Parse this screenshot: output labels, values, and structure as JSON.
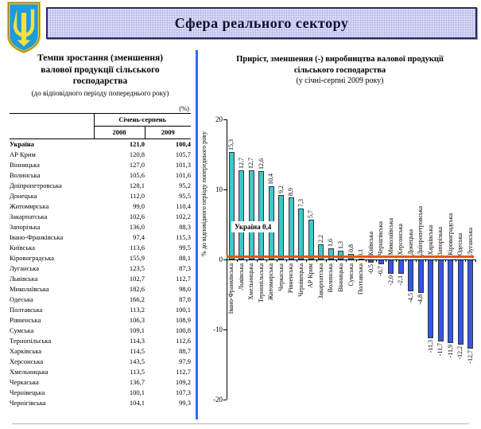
{
  "header": {
    "title": "Сфера реального сектору"
  },
  "left_panel": {
    "title": "Темпи зростання (зменшення) валової продукції сільського господарства",
    "subtitle": "(до відповідного періоду попереднього року)",
    "unit_label": "(%)",
    "table": {
      "period_header": "Січень-серпень",
      "col_headers": [
        "2008",
        "2009"
      ],
      "rows": [
        {
          "region": "Україна",
          "v2008": "121,0",
          "v2009": "100,4",
          "bold": true
        },
        {
          "region": "АР Крим",
          "v2008": "120,8",
          "v2009": "105,7"
        },
        {
          "region": "Вінницька",
          "v2008": "127,0",
          "v2009": "101,3"
        },
        {
          "region": "Волинська",
          "v2008": "105,6",
          "v2009": "101,6"
        },
        {
          "region": "Дніпропетровська",
          "v2008": "128,1",
          "v2009": "95,2"
        },
        {
          "region": "Донецька",
          "v2008": "112,0",
          "v2009": "95,5"
        },
        {
          "region": "Житомирська",
          "v2008": "99,0",
          "v2009": "110,4"
        },
        {
          "region": "Закарпатська",
          "v2008": "102,6",
          "v2009": "102,2"
        },
        {
          "region": "Запорізька",
          "v2008": "136,0",
          "v2009": "88,3"
        },
        {
          "region": "Івано-Франківська",
          "v2008": "97,4",
          "v2009": "115,3"
        },
        {
          "region": "Київська",
          "v2008": "113,6",
          "v2009": "99,5"
        },
        {
          "region": "Кіровоградська",
          "v2008": "155,9",
          "v2009": "88,1"
        },
        {
          "region": "Луганська",
          "v2008": "123,5",
          "v2009": "87,3"
        },
        {
          "region": "Львівська",
          "v2008": "102,7",
          "v2009": "112,7"
        },
        {
          "region": "Миколаївська",
          "v2008": "182,6",
          "v2009": "98,0"
        },
        {
          "region": "Одеська",
          "v2008": "166,2",
          "v2009": "87,8"
        },
        {
          "region": "Полтавська",
          "v2008": "113,2",
          "v2009": "100,1"
        },
        {
          "region": "Рівненська",
          "v2008": "106,3",
          "v2009": "108,9"
        },
        {
          "region": "Сумська",
          "v2008": "109,1",
          "v2009": "100,8"
        },
        {
          "region": "Тернопільська",
          "v2008": "114,3",
          "v2009": "112,6"
        },
        {
          "region": "Харківська",
          "v2008": "114,5",
          "v2009": "88,7"
        },
        {
          "region": "Херсонська",
          "v2008": "143,5",
          "v2009": "97,9"
        },
        {
          "region": "Хмельницька",
          "v2008": "113,5",
          "v2009": "112,7"
        },
        {
          "region": "Черкаська",
          "v2008": "136,7",
          "v2009": "109,2"
        },
        {
          "region": "Чернівецька",
          "v2008": "100,1",
          "v2009": "107,3"
        },
        {
          "region": "Чернігівська",
          "v2008": "104,1",
          "v2009": "99,3"
        }
      ]
    }
  },
  "chart": {
    "title_line1": "Приріст, зменшення (-) виробництва валової продукції",
    "title_line2": "сільського господарства",
    "title_line3": "(у січні-серпні 2009 року)"
  },
  "chart_data": {
    "type": "bar",
    "title": "Приріст, зменшення (-) виробництва валової продукції сільського господарства (у січні-серпні 2009 року)",
    "ylabel": "% до відповідного періоду попереднього року",
    "ylim": [
      -20,
      20
    ],
    "yticks": [
      20,
      10,
      0,
      -10,
      -20
    ],
    "grid": false,
    "legend": "none",
    "categories": [
      "Івано-Франківська",
      "Львівська",
      "Хмельницька",
      "Тернопільська",
      "Житомирська",
      "Черкаська",
      "Рівненська",
      "Чернівецька",
      "АР Крим",
      "Закарпатська",
      "Волинська",
      "Вінницька",
      "Сумська",
      "Полтавська",
      "Київська",
      "Чернігівська",
      "Миколаївська",
      "Херсонська",
      "Донецька",
      "Дніпропетровська",
      "Харківська",
      "Запорізька",
      "Кіровоградська",
      "Одеська",
      "Луганська"
    ],
    "values": [
      15.3,
      12.7,
      12.7,
      12.6,
      10.4,
      9.2,
      8.9,
      7.3,
      5.7,
      2.2,
      1.6,
      1.3,
      0.8,
      0.1,
      -0.5,
      -0.7,
      -2.0,
      -2.1,
      -4.5,
      -4.8,
      -11.3,
      -11.7,
      -11.9,
      -12.2,
      -12.7
    ],
    "value_labels": [
      "15,3",
      "12,7",
      "12,7",
      "12,6",
      "10,4",
      "9,2",
      "8,9",
      "7,3",
      "5,7",
      "2,2",
      "1,6",
      "1,3",
      "0,8",
      "0,1",
      "-0,5",
      "-0,7",
      "-2,0",
      "-2,1",
      "-4,5",
      "-4,8",
      "-11,3",
      "-11,7",
      "-11,9",
      "-12,2",
      "-12,7"
    ],
    "reference_line": {
      "label": "Україна 0,4",
      "value": 0.4
    }
  },
  "colors": {
    "positive_bar": "#3fc7cb",
    "negative_bar": "#3356e8",
    "reference_line": "#e8570a",
    "divider": "#2f6bf0",
    "band_bg": "#dcdcf6"
  }
}
